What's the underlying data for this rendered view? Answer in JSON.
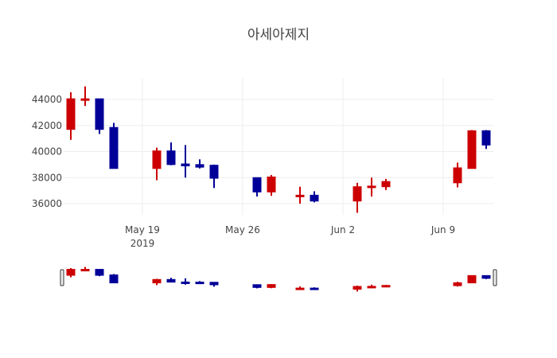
{
  "chart_data": {
    "type": "candlestick",
    "title": "아세아제지",
    "xlabel": "",
    "ylabel": "",
    "ylim": [
      34800,
      45800
    ],
    "y_ticks": [
      36000,
      38000,
      40000,
      42000,
      44000
    ],
    "y_tick_labels": [
      "36000",
      "38000",
      "40000",
      "42000",
      "44000"
    ],
    "x_ticks": [
      "2019-05-19",
      "2019-05-26",
      "2019-06-02",
      "2019-06-09"
    ],
    "x_tick_labels": [
      "May 19\n2019",
      "May 26",
      "Jun 2",
      "Jun 9"
    ],
    "xlim": [
      "2019-05-13T12:00",
      "2019-06-12T12:00"
    ],
    "grid": true,
    "rangeslider": true,
    "colors": {
      "increasing": "#cc0000",
      "decreasing": "#000099",
      "grid": "#eeeeee",
      "text": "#444444"
    },
    "x": [
      "2019-05-14",
      "2019-05-15",
      "2019-05-16",
      "2019-05-17",
      "2019-05-20",
      "2019-05-21",
      "2019-05-22",
      "2019-05-23",
      "2019-05-24",
      "2019-05-27",
      "2019-05-28",
      "2019-05-30",
      "2019-05-31",
      "2019-06-03",
      "2019-06-04",
      "2019-06-05",
      "2019-06-10",
      "2019-06-11",
      "2019-06-12"
    ],
    "open": [
      41700,
      44000,
      44050,
      41850,
      38700,
      40050,
      39050,
      39000,
      38950,
      38000,
      36900,
      36550,
      36650,
      36200,
      37250,
      37300,
      37600,
      38700,
      41600
    ],
    "high": [
      44550,
      45000,
      44050,
      42200,
      40300,
      40700,
      40500,
      39400,
      39000,
      38000,
      38200,
      37300,
      36950,
      37600,
      38000,
      37900,
      39150,
      41650,
      41650
    ],
    "low": [
      40900,
      43500,
      41350,
      38700,
      37800,
      38950,
      38000,
      38700,
      37200,
      36550,
      36600,
      36000,
      36100,
      35300,
      36550,
      37050,
      37250,
      38700,
      40200
    ],
    "close": [
      44050,
      44050,
      41700,
      38700,
      40050,
      39000,
      38900,
      38800,
      37950,
      36900,
      38050,
      36650,
      36200,
      37300,
      37350,
      37700,
      38750,
      41600,
      40500
    ]
  }
}
